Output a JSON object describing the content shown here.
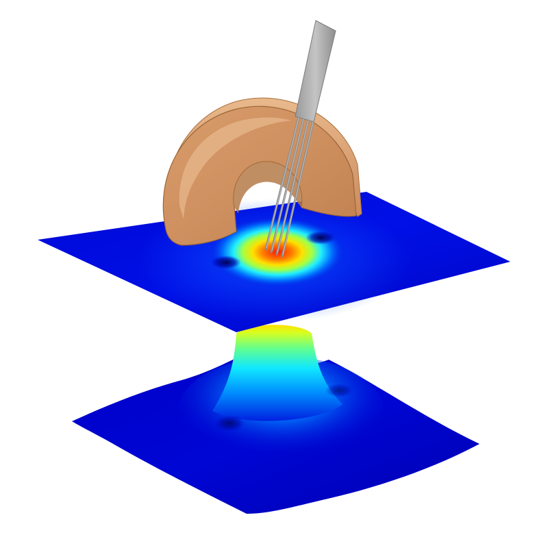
{
  "figure": {
    "background": "#ffffff",
    "colormap": [
      "#0000c8",
      "#0060ff",
      "#00c8ff",
      "#30ffd0",
      "#c8ff30",
      "#ffe000",
      "#ff8000",
      "#ff1800"
    ],
    "coil": {
      "shape": "half-torus",
      "face_color": "#d09464",
      "shade_color": "#a8703c",
      "highlight_color": "#e9b98c"
    },
    "probe": {
      "shape": "needle-array",
      "needle_count": 4,
      "color": "#a9a9a9",
      "edge_color": "#7a7a7a"
    },
    "field_plane": {
      "type": "2d-heatmap-slice",
      "peak_color": "#ff1800",
      "base_color": "#0000c8"
    },
    "field_surface": {
      "type": "3d-surface-plot",
      "peak_color": "#ffe000",
      "base_color": "#0000c0"
    }
  }
}
